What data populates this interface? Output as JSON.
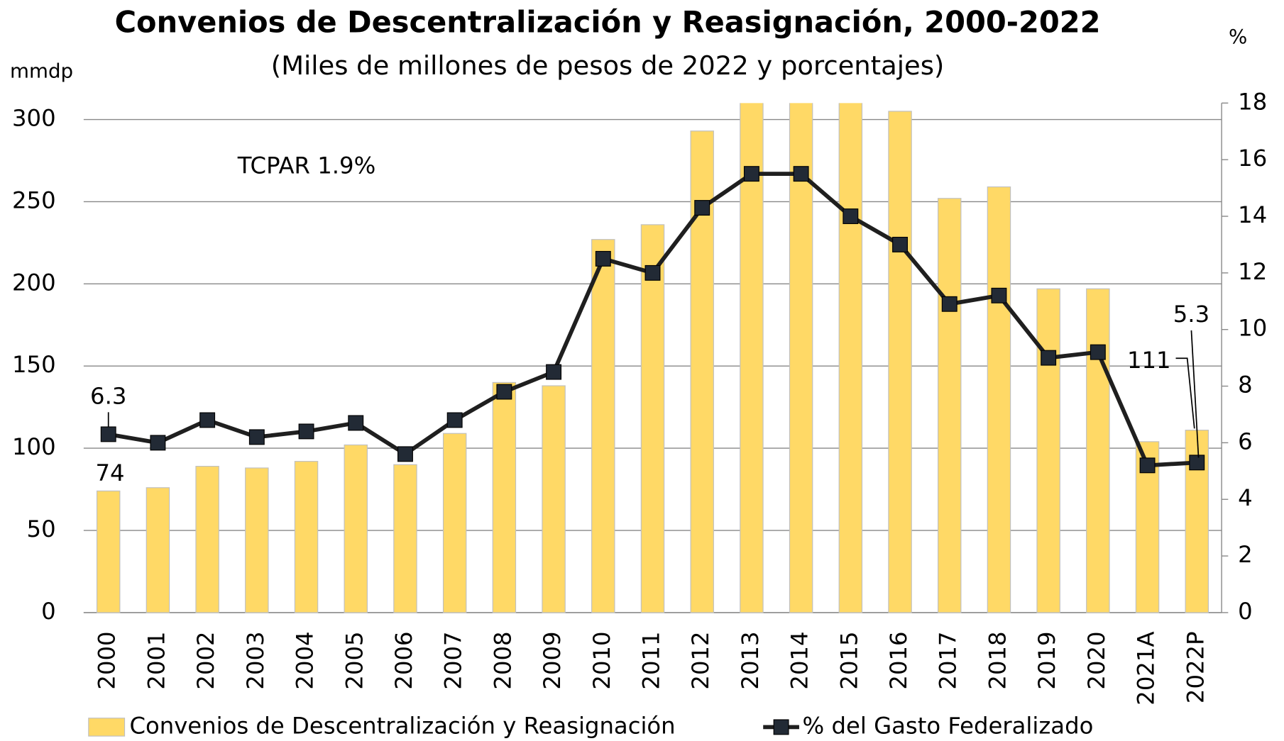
{
  "chart_data": {
    "type": "bar_line",
    "title": "Convenios de Descentralización y Reasignación, 2000-2022",
    "subtitle": "(Miles de millones de pesos de 2022 y porcentajes)",
    "y_label": "mmdp",
    "y2_label": "%",
    "annotation": "TCPAR 1.9%",
    "categories": [
      "2000",
      "2001",
      "2002",
      "2003",
      "2004",
      "2005",
      "2006",
      "2007",
      "2008",
      "2009",
      "2010",
      "2011",
      "2012",
      "2013",
      "2014",
      "2015",
      "2016",
      "2017",
      "2018",
      "2019",
      "2020",
      "2021A",
      "2022P"
    ],
    "series": [
      {
        "name": "Convenios de Descentralización y Reasignación",
        "type": "bar",
        "color": "#ffd966",
        "values": [
          74,
          76,
          89,
          88,
          92,
          102,
          90,
          109,
          140,
          138,
          227,
          236,
          293,
          315,
          320,
          312,
          305,
          252,
          259,
          197,
          197,
          104,
          111
        ]
      },
      {
        "name": "% del Gasto Federalizado",
        "type": "line",
        "axis": "y2",
        "color": "#1f1f1f",
        "marker_color": "#222a35",
        "values": [
          6.3,
          6.0,
          6.8,
          6.2,
          6.4,
          6.7,
          5.6,
          6.8,
          7.8,
          8.5,
          12.5,
          12.0,
          14.3,
          15.5,
          15.5,
          14.0,
          13.0,
          10.9,
          11.2,
          9.0,
          9.2,
          5.2,
          5.3
        ]
      }
    ],
    "ylim": [
      0,
      310
    ],
    "yticks": [
      0,
      50,
      100,
      150,
      200,
      250,
      300
    ],
    "y2lim": [
      0,
      18
    ],
    "y2ticks": [
      0,
      2,
      4,
      6,
      8,
      10,
      12,
      14,
      16,
      18
    ],
    "grid": true
  }
}
